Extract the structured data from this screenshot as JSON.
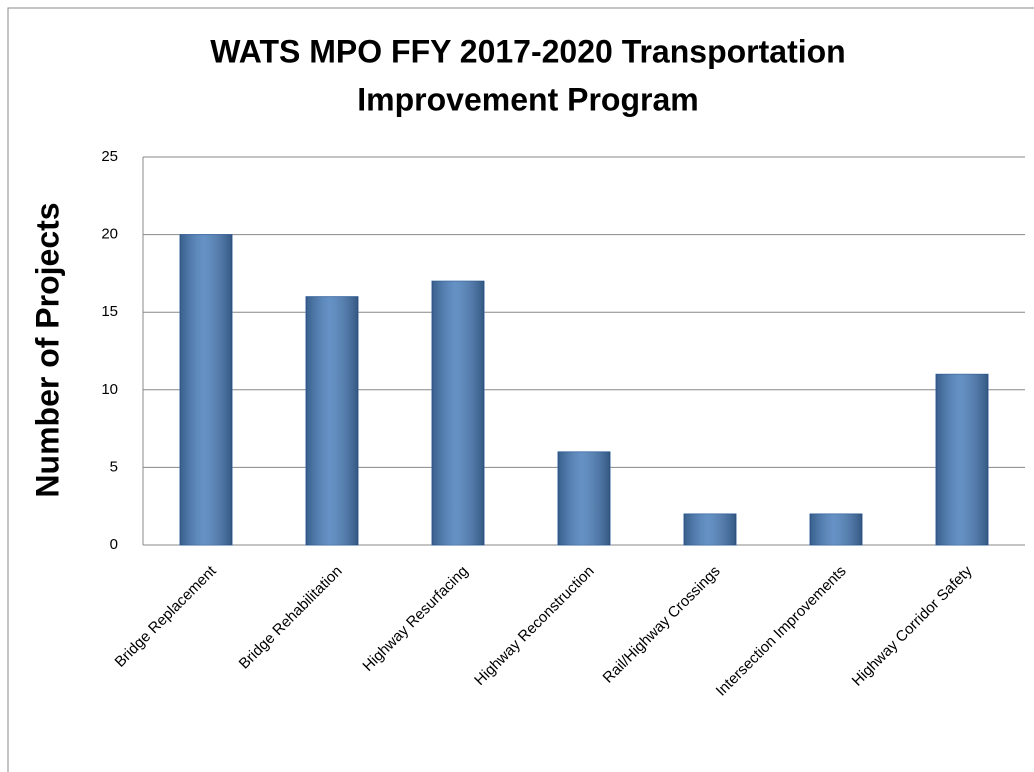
{
  "chart_data": {
    "type": "bar",
    "title": [
      "WATS MPO FFY 2017-2020 Transportation",
      "Improvement Program"
    ],
    "y_label": "Number of Projects",
    "categories": [
      "Bridge Replacement",
      "Bridge Rehabilitation",
      "Highway Resurfacing",
      "Highway Reconstruction",
      "Rail/Highway Crossings",
      "Intersection Improvements",
      "Highway Corridor Safety"
    ],
    "values": [
      20,
      16,
      17,
      6,
      2,
      2,
      11
    ],
    "color": "#4a7ebb",
    "ylim": [
      0,
      25
    ],
    "yticks": [
      0,
      5,
      10,
      15,
      20,
      25
    ],
    "grid": true
  }
}
